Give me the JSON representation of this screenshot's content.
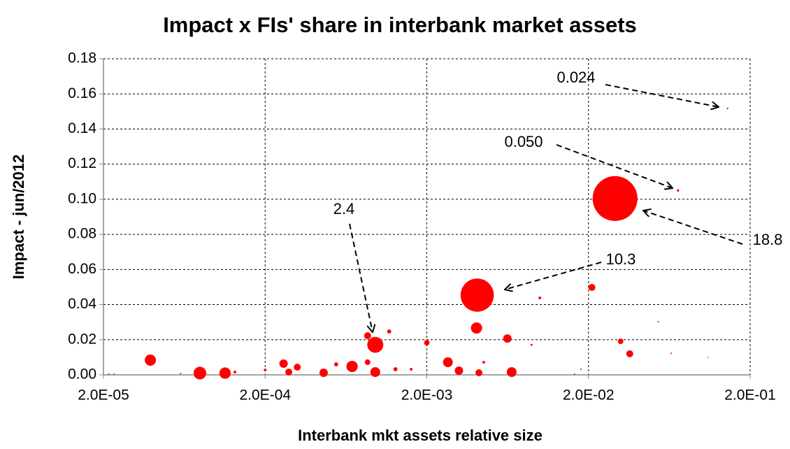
{
  "chart_data": {
    "type": "bubble",
    "title": "Impact x FIs' share in interbank market assets",
    "x_label": "Interbank mkt assets relative size",
    "y_label": "Impact - jun/2012",
    "color": "#ff0000",
    "x_scale": "log",
    "grid": true,
    "xlim": [
      2e-05,
      0.2
    ],
    "ylim": [
      0,
      0.18
    ],
    "xticks": [
      {
        "value": 2e-05,
        "label": "2.0E-05"
      },
      {
        "value": 0.0002,
        "label": "2.0E-04"
      },
      {
        "value": 0.002,
        "label": "2.0E-03"
      },
      {
        "value": 0.02,
        "label": "2.0E-02"
      },
      {
        "value": 0.2,
        "label": "2.0E-01"
      }
    ],
    "yticks": [
      {
        "value": 0,
        "label": "0.00"
      },
      0.02,
      0.04,
      0.06,
      0.08,
      {
        "value": 0.1,
        "label": "0.10"
      },
      0.12,
      0.14,
      0.16,
      0.18
    ],
    "x": [
      0.0292,
      0.0041,
      0.00096,
      0.145,
      0.0716,
      3.9e-05,
      7.9e-05,
      0.000113,
      0.00026,
      0.000316,
      0.00028,
      0.00046,
      0.00069,
      0.00086,
      0.00086,
      0.00096,
      0.00117,
      0.002,
      0.0027,
      0.00406,
      0.00316,
      0.0042,
      0.0063,
      0.0067,
      0.0045,
      0.0089,
      0.01,
      0.021,
      0.0316,
      0.036,
      0.054,
      0.065,
      0.11,
      2.16e-05,
      2.32e-05,
      6e-05,
      0.00013,
      0.0002,
      0.00055,
      0.00128,
      0.0016,
      0.0164,
      0.018
    ],
    "values": [
      0.1004,
      0.0454,
      0.0171,
      0.1517,
      0.105,
      0.0084,
      0.001,
      0.001,
      0.0064,
      0.0044,
      0.0016,
      0.0012,
      0.0048,
      0.0223,
      0.0072,
      0.0016,
      0.0247,
      0.0183,
      0.0072,
      0.0267,
      0.0024,
      0.0012,
      0.0207,
      0.0016,
      0.0072,
      0.0171,
      0.0438,
      0.0498,
      0.0191,
      0.012,
      0.0303,
      0.0123,
      0.01,
      0.0004,
      0.0004,
      0.0008,
      0.0016,
      0.0028,
      0.006,
      0.0032,
      0.0032,
      0.0004,
      0.0032
    ],
    "sizes": [
      18.8,
      10.3,
      2.4,
      0.024,
      0.05,
      1.17,
      1.5,
      1.2,
      0.66,
      0.45,
      0.45,
      0.66,
      1.2,
      0.45,
      0.29,
      0.9,
      0.16,
      0.29,
      0.9,
      1.17,
      0.66,
      0.45,
      0.66,
      0.9,
      0.07,
      0.04,
      0.07,
      0.45,
      0.29,
      0.45,
      0.02,
      0.02,
      0.01,
      0.02,
      0.02,
      0.02,
      0.07,
      0.07,
      0.16,
      0.16,
      0.07,
      0.02,
      0.02
    ],
    "annotations": [
      "0.024",
      "0.050",
      "18.8",
      "10.3",
      "2.4"
    ]
  }
}
